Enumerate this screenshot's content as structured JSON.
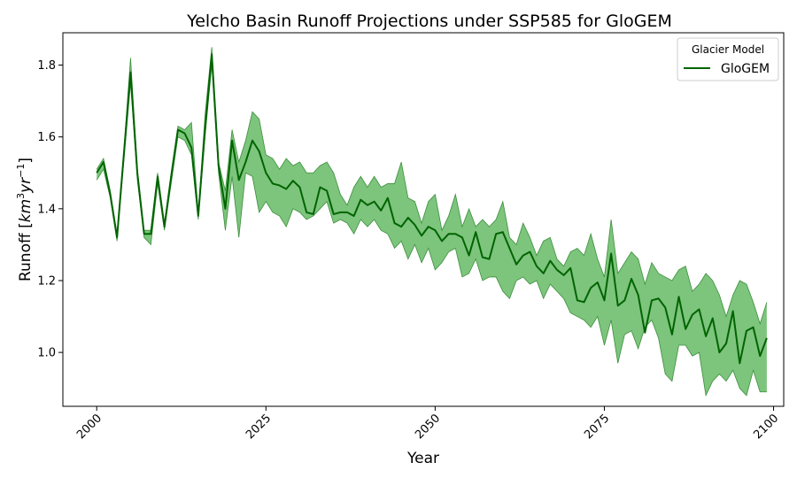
{
  "chart_data": {
    "type": "line",
    "title": "Yelcho Basin Runoff Projections under SSP585 for GloGEM",
    "xlabel": "Year",
    "ylabel": "Runoff [km³yr⁻¹]",
    "ylabel_parts": {
      "main": "Runoff [",
      "km": "km",
      "exp3": "3",
      "yr": "yr",
      "expm1": "−1",
      "close": "]"
    },
    "xlim": [
      1995,
      2101.5
    ],
    "ylim": [
      0.85,
      1.89
    ],
    "x_ticks": [
      2000,
      2025,
      2050,
      2075,
      2100
    ],
    "x_tick_labels": [
      "2000",
      "2025",
      "2050",
      "2075",
      "2100"
    ],
    "y_ticks": [
      1.0,
      1.2,
      1.4,
      1.6,
      1.8
    ],
    "y_tick_labels": [
      "1.0",
      "1.2",
      "1.4",
      "1.6",
      "1.8"
    ],
    "legend": {
      "title": "Glacier Model",
      "placement": "top-right",
      "entries": [
        "GloGEM"
      ]
    },
    "colors": {
      "line": "#006400",
      "band": "#52b052",
      "band_edge": "#3c8f3c"
    },
    "x": [
      2000,
      2001,
      2002,
      2003,
      2004,
      2005,
      2006,
      2007,
      2008,
      2009,
      2010,
      2011,
      2012,
      2013,
      2014,
      2015,
      2016,
      2017,
      2018,
      2019,
      2020,
      2021,
      2022,
      2023,
      2024,
      2025,
      2026,
      2027,
      2028,
      2029,
      2030,
      2031,
      2032,
      2033,
      2034,
      2035,
      2036,
      2037,
      2038,
      2039,
      2040,
      2041,
      2042,
      2043,
      2044,
      2045,
      2046,
      2047,
      2048,
      2049,
      2050,
      2051,
      2052,
      2053,
      2054,
      2055,
      2056,
      2057,
      2058,
      2059,
      2060,
      2061,
      2062,
      2063,
      2064,
      2065,
      2066,
      2067,
      2068,
      2069,
      2070,
      2071,
      2072,
      2073,
      2074,
      2075,
      2076,
      2077,
      2078,
      2079,
      2080,
      2081,
      2082,
      2083,
      2084,
      2085,
      2086,
      2087,
      2088,
      2089,
      2090,
      2091,
      2092,
      2093,
      2094,
      2095,
      2096,
      2097,
      2098,
      2099
    ],
    "series": [
      {
        "name": "GloGEM",
        "values": [
          1.5,
          1.53,
          1.44,
          1.32,
          1.55,
          1.78,
          1.5,
          1.33,
          1.33,
          1.49,
          1.35,
          1.49,
          1.62,
          1.61,
          1.57,
          1.38,
          1.62,
          1.83,
          1.52,
          1.4,
          1.59,
          1.48,
          1.53,
          1.59,
          1.56,
          1.5,
          1.47,
          1.465,
          1.455,
          1.478,
          1.46,
          1.39,
          1.385,
          1.46,
          1.45,
          1.385,
          1.39,
          1.39,
          1.38,
          1.425,
          1.41,
          1.42,
          1.395,
          1.43,
          1.36,
          1.35,
          1.375,
          1.355,
          1.325,
          1.35,
          1.34,
          1.31,
          1.33,
          1.33,
          1.32,
          1.27,
          1.335,
          1.265,
          1.26,
          1.33,
          1.335,
          1.29,
          1.245,
          1.27,
          1.28,
          1.24,
          1.22,
          1.255,
          1.23,
          1.215,
          1.235,
          1.145,
          1.14,
          1.18,
          1.195,
          1.145,
          1.275,
          1.13,
          1.145,
          1.205,
          1.16,
          1.055,
          1.145,
          1.15,
          1.125,
          1.05,
          1.155,
          1.065,
          1.105,
          1.12,
          1.045,
          1.095,
          1.0,
          1.025,
          1.115,
          0.97,
          1.06,
          1.07,
          0.99,
          1.04
        ],
        "lower": [
          1.48,
          1.51,
          1.43,
          1.31,
          1.53,
          1.75,
          1.48,
          1.32,
          1.3,
          1.47,
          1.34,
          1.47,
          1.6,
          1.59,
          1.55,
          1.37,
          1.6,
          1.8,
          1.5,
          1.34,
          1.49,
          1.32,
          1.5,
          1.49,
          1.39,
          1.42,
          1.39,
          1.38,
          1.35,
          1.4,
          1.39,
          1.37,
          1.38,
          1.4,
          1.42,
          1.36,
          1.37,
          1.36,
          1.33,
          1.37,
          1.35,
          1.37,
          1.34,
          1.33,
          1.29,
          1.31,
          1.26,
          1.3,
          1.25,
          1.29,
          1.23,
          1.25,
          1.28,
          1.29,
          1.21,
          1.22,
          1.26,
          1.2,
          1.21,
          1.21,
          1.17,
          1.15,
          1.2,
          1.21,
          1.19,
          1.2,
          1.15,
          1.19,
          1.17,
          1.15,
          1.11,
          1.1,
          1.09,
          1.07,
          1.1,
          1.02,
          1.09,
          0.97,
          1.05,
          1.06,
          1.01,
          1.07,
          1.09,
          1.04,
          0.94,
          0.92,
          1.02,
          1.02,
          0.99,
          1.0,
          0.88,
          0.92,
          0.94,
          0.92,
          0.95,
          0.9,
          0.88,
          0.95,
          0.89,
          0.89
        ],
        "upper": [
          1.51,
          1.54,
          1.45,
          1.33,
          1.56,
          1.82,
          1.51,
          1.34,
          1.34,
          1.5,
          1.36,
          1.5,
          1.63,
          1.62,
          1.64,
          1.39,
          1.66,
          1.85,
          1.53,
          1.45,
          1.62,
          1.53,
          1.59,
          1.67,
          1.65,
          1.55,
          1.54,
          1.51,
          1.54,
          1.52,
          1.53,
          1.5,
          1.5,
          1.52,
          1.53,
          1.5,
          1.44,
          1.41,
          1.46,
          1.49,
          1.46,
          1.49,
          1.46,
          1.47,
          1.47,
          1.53,
          1.43,
          1.42,
          1.36,
          1.42,
          1.44,
          1.34,
          1.38,
          1.44,
          1.35,
          1.4,
          1.35,
          1.37,
          1.35,
          1.37,
          1.42,
          1.32,
          1.3,
          1.36,
          1.32,
          1.27,
          1.31,
          1.32,
          1.26,
          1.24,
          1.28,
          1.29,
          1.27,
          1.33,
          1.26,
          1.21,
          1.37,
          1.22,
          1.25,
          1.28,
          1.26,
          1.19,
          1.25,
          1.22,
          1.21,
          1.2,
          1.23,
          1.24,
          1.17,
          1.19,
          1.22,
          1.2,
          1.16,
          1.1,
          1.16,
          1.2,
          1.19,
          1.14,
          1.08,
          1.14
        ]
      }
    ]
  }
}
